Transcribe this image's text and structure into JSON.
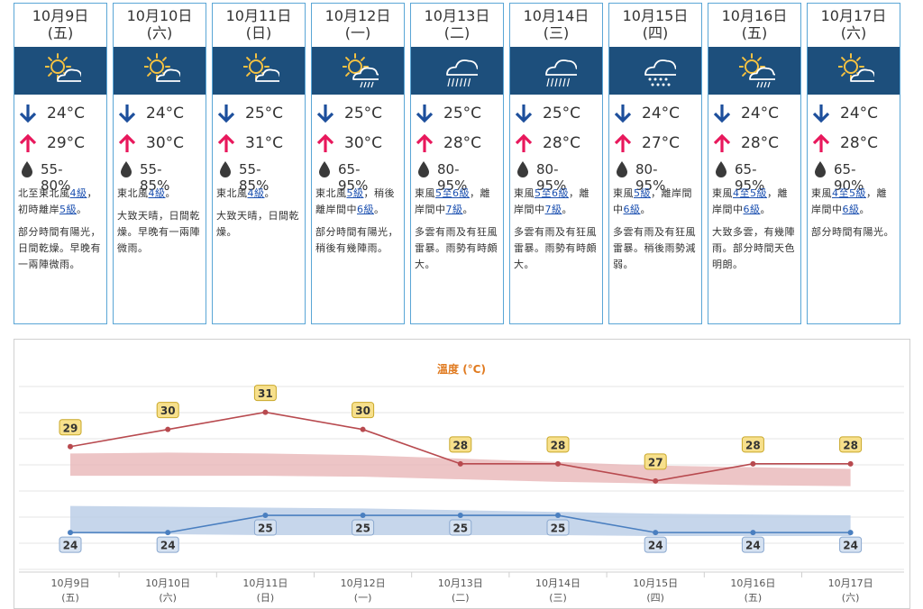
{
  "forecast": [
    {
      "date": "10月9日",
      "weekday": "(五)",
      "icon": "sunny-periods-icon",
      "min": "24°C",
      "max": "29°C",
      "rh": "55-80%",
      "wind": [
        {
          "t": "北至東北風"
        },
        {
          "t": "4級",
          "link": true
        },
        {
          "t": "，初時離岸"
        },
        {
          "t": "5級",
          "link": true
        },
        {
          "t": "。"
        }
      ],
      "desc": "部分時間有陽光，日間乾燥。早晚有一兩陣微雨。"
    },
    {
      "date": "10月10日",
      "weekday": "(六)",
      "icon": "sunny-periods-icon",
      "min": "24°C",
      "max": "30°C",
      "rh": "55-85%",
      "wind": [
        {
          "t": "東北風"
        },
        {
          "t": "4級",
          "link": true
        },
        {
          "t": "。"
        }
      ],
      "desc": "大致天晴，日間乾燥。早晚有一兩陣微雨。"
    },
    {
      "date": "10月11日",
      "weekday": "(日)",
      "icon": "sunny-periods-icon",
      "min": "25°C",
      "max": "31°C",
      "rh": "55-85%",
      "wind": [
        {
          "t": "東北風"
        },
        {
          "t": "4級",
          "link": true
        },
        {
          "t": "。"
        }
      ],
      "desc": "大致天晴，日間乾燥。"
    },
    {
      "date": "10月12日",
      "weekday": "(一)",
      "icon": "sunny-periods-showers-icon",
      "min": "25°C",
      "max": "30°C",
      "rh": "65-95%",
      "wind": [
        {
          "t": "東北風"
        },
        {
          "t": "5級",
          "link": true
        },
        {
          "t": "，稍後離岸間中"
        },
        {
          "t": "6級",
          "link": true
        },
        {
          "t": "。"
        }
      ],
      "desc": "部分時間有陽光，稍後有幾陣雨。"
    },
    {
      "date": "10月13日",
      "weekday": "(二)",
      "icon": "rain-icon",
      "min": "25°C",
      "max": "28°C",
      "rh": "80-95%",
      "wind": [
        {
          "t": "東風"
        },
        {
          "t": "5至6級",
          "link": true
        },
        {
          "t": "，離岸間中"
        },
        {
          "t": "7級",
          "link": true
        },
        {
          "t": "。"
        }
      ],
      "desc": "多雲有雨及有狂風雷暴。雨勢有時頗大。"
    },
    {
      "date": "10月14日",
      "weekday": "(三)",
      "icon": "rain-icon",
      "min": "25°C",
      "max": "28°C",
      "rh": "80-95%",
      "wind": [
        {
          "t": "東風"
        },
        {
          "t": "5至6級",
          "link": true
        },
        {
          "t": "，離岸間中"
        },
        {
          "t": "7級",
          "link": true
        },
        {
          "t": "。"
        }
      ],
      "desc": "多雲有雨及有狂風雷暴。雨勢有時頗大。"
    },
    {
      "date": "10月15日",
      "weekday": "(四)",
      "icon": "showers-icon",
      "min": "24°C",
      "max": "27°C",
      "rh": "80-95%",
      "wind": [
        {
          "t": "東風"
        },
        {
          "t": "5級",
          "link": true
        },
        {
          "t": "，離岸間中"
        },
        {
          "t": "6級",
          "link": true
        },
        {
          "t": "。"
        }
      ],
      "desc": "多雲有雨及有狂風雷暴。稍後雨勢減弱。"
    },
    {
      "date": "10月16日",
      "weekday": "(五)",
      "icon": "sunny-periods-showers-icon",
      "min": "24°C",
      "max": "28°C",
      "rh": "65-95%",
      "wind": [
        {
          "t": "東風"
        },
        {
          "t": "4至5級",
          "link": true
        },
        {
          "t": "，離岸間中"
        },
        {
          "t": "6級",
          "link": true
        },
        {
          "t": "。"
        }
      ],
      "desc": "大致多雲，有幾陣雨。部分時間天色明朗。"
    },
    {
      "date": "10月17日",
      "weekday": "(六)",
      "icon": "sunny-periods-icon",
      "min": "24°C",
      "max": "28°C",
      "rh": "65-90%",
      "wind": [
        {
          "t": "東風"
        },
        {
          "t": "4至5級",
          "link": true
        },
        {
          "t": "，離岸間中"
        },
        {
          "t": "6級",
          "link": true
        },
        {
          "t": "。"
        }
      ],
      "desc": "部分時間有陽光。"
    }
  ],
  "colors": {
    "accent": "#1d4f7c",
    "max_arrow": "#e8185c",
    "min_arrow": "#1d4f9c",
    "link": "#1a4fb0",
    "border": "#5aa6d6"
  },
  "chart_data": {
    "type": "line",
    "title": "溫度 (°C)",
    "categories": [
      "10月9日",
      "10月10日",
      "10月11日",
      "10月12日",
      "10月13日",
      "10月14日",
      "10月15日",
      "10月16日",
      "10月17日"
    ],
    "weekdays": [
      "(五)",
      "(六)",
      "(日)",
      "(一)",
      "(二)",
      "(三)",
      "(四)",
      "(五)",
      "(六)"
    ],
    "series": [
      {
        "values": [
          29,
          30,
          31,
          30,
          28,
          28,
          27,
          28,
          28
        ],
        "color": "#b84a4f",
        "band_color": "#e9b6b8",
        "label_bg": "#f7e08c",
        "label_border": "#c9a82a"
      },
      {
        "values": [
          24,
          24,
          25,
          25,
          25,
          25,
          24,
          24,
          24
        ],
        "color": "#4a7fc0",
        "band_color": "#b8cce6",
        "label_bg": "#d6e2f1",
        "label_border": "#8aa8cf"
      }
    ],
    "bands": [
      {
        "upper": [
          28.6,
          28.65,
          28.6,
          28.5,
          28.3,
          28.1,
          27.9,
          27.8,
          27.7
        ],
        "lower": [
          27.3,
          27.3,
          27.3,
          27.25,
          27.1,
          26.95,
          26.85,
          26.75,
          26.7
        ]
      },
      {
        "upper": [
          25.55,
          25.5,
          25.45,
          25.4,
          25.3,
          25.2,
          25.1,
          25.05,
          25.0
        ],
        "lower": [
          23.95,
          23.9,
          23.85,
          23.85,
          23.85,
          23.85,
          23.8,
          23.8,
          23.8
        ]
      }
    ],
    "ylim": [
      21.7,
      32.5
    ],
    "grid": true
  }
}
